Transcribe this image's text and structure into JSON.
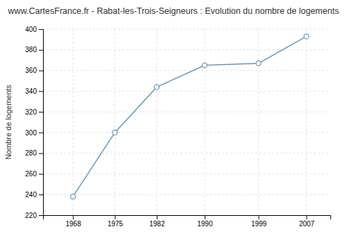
{
  "chart_data": {
    "type": "line",
    "title": "www.CartesFrance.fr - Rabat-les-Trois-Seigneurs : Evolution du nombre de logements",
    "ylabel": "Nombre de logements",
    "x": [
      1968,
      1975,
      1982,
      1990,
      1999,
      2007
    ],
    "values": [
      238,
      300,
      344,
      365,
      367,
      393
    ],
    "xlim": [
      1963,
      2011
    ],
    "xticks": [
      1968,
      1975,
      1982,
      1990,
      1999,
      2007
    ],
    "ylim": [
      220,
      400
    ],
    "yticks": [
      220,
      240,
      260,
      280,
      300,
      320,
      340,
      360,
      380,
      400
    ],
    "grid": true,
    "color": "#6699bb",
    "marker": "circle",
    "line_style": "solid"
  }
}
